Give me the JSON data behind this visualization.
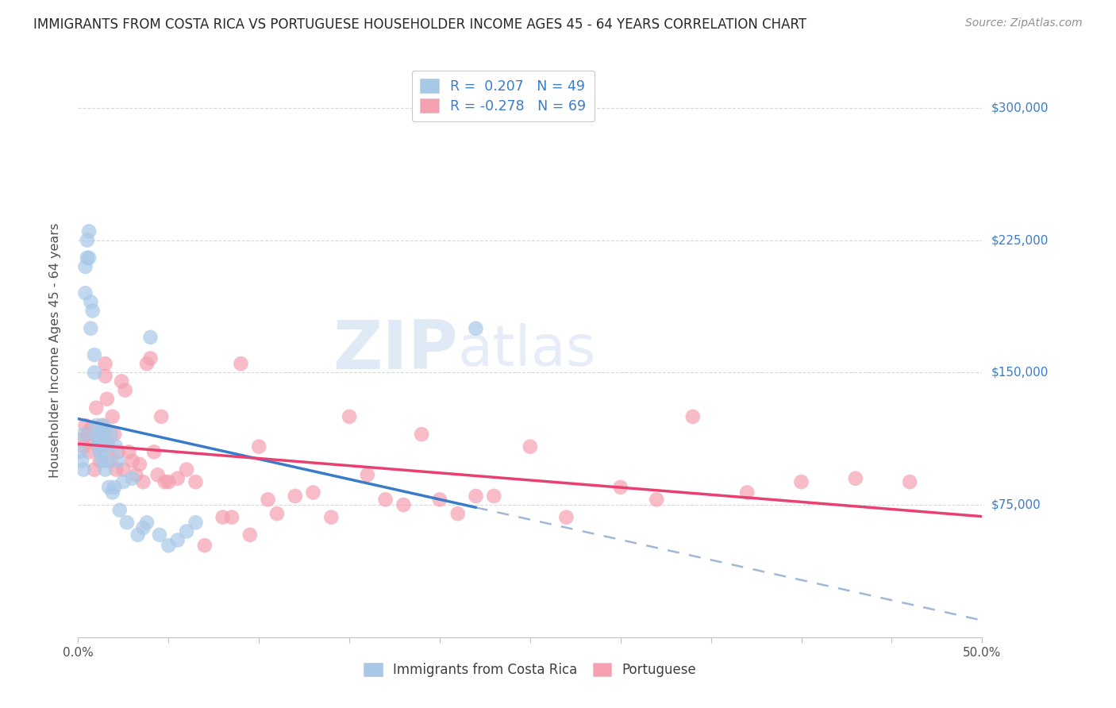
{
  "title": "IMMIGRANTS FROM COSTA RICA VS PORTUGUESE HOUSEHOLDER INCOME AGES 45 - 64 YEARS CORRELATION CHART",
  "source": "Source: ZipAtlas.com",
  "ylabel": "Householder Income Ages 45 - 64 years",
  "ytick_labels": [
    "$75,000",
    "$150,000",
    "$225,000",
    "$300,000"
  ],
  "ytick_values": [
    75000,
    150000,
    225000,
    300000
  ],
  "ylim": [
    0,
    325000
  ],
  "xlim": [
    0.0,
    0.5
  ],
  "legend_label1": "Immigrants from Costa Rica",
  "legend_label2": "Portuguese",
  "costa_rica_color": "#a8c8e8",
  "portuguese_color": "#f4a0b0",
  "regression_color_cr": "#3a7cc8",
  "regression_color_pt": "#e84070",
  "dashed_line_color": "#a0b8d8",
  "background_color": "#ffffff",
  "grid_color": "#d8d8d8",
  "title_color": "#282828",
  "axis_label_color": "#505050",
  "ytick_color": "#3a7cc8",
  "watermark_color": "#c8d8f0",
  "cr_legend_text": "R =  0.207   N = 49",
  "pt_legend_text": "R = -0.278   N = 69",
  "legend_text_color": "#3a7cc8",
  "costa_rica_x": [
    0.001,
    0.002,
    0.003,
    0.003,
    0.004,
    0.004,
    0.005,
    0.005,
    0.006,
    0.006,
    0.007,
    0.007,
    0.008,
    0.009,
    0.009,
    0.01,
    0.01,
    0.011,
    0.011,
    0.012,
    0.012,
    0.013,
    0.013,
    0.014,
    0.014,
    0.015,
    0.015,
    0.016,
    0.016,
    0.017,
    0.018,
    0.019,
    0.02,
    0.021,
    0.022,
    0.023,
    0.025,
    0.027,
    0.03,
    0.033,
    0.036,
    0.038,
    0.04,
    0.045,
    0.05,
    0.055,
    0.06,
    0.065,
    0.22
  ],
  "costa_rica_y": [
    105000,
    100000,
    115000,
    95000,
    210000,
    195000,
    225000,
    215000,
    230000,
    215000,
    190000,
    175000,
    185000,
    160000,
    150000,
    120000,
    115000,
    113000,
    110000,
    108000,
    105000,
    115000,
    100000,
    120000,
    110000,
    95000,
    115000,
    108000,
    100000,
    85000,
    115000,
    82000,
    85000,
    108000,
    100000,
    72000,
    88000,
    65000,
    90000,
    58000,
    62000,
    65000,
    170000,
    58000,
    52000,
    55000,
    60000,
    65000,
    175000
  ],
  "portuguese_x": [
    0.002,
    0.003,
    0.004,
    0.005,
    0.006,
    0.007,
    0.008,
    0.009,
    0.01,
    0.011,
    0.012,
    0.013,
    0.014,
    0.015,
    0.015,
    0.016,
    0.017,
    0.018,
    0.019,
    0.02,
    0.021,
    0.022,
    0.024,
    0.025,
    0.026,
    0.028,
    0.03,
    0.032,
    0.034,
    0.036,
    0.038,
    0.04,
    0.042,
    0.044,
    0.046,
    0.048,
    0.05,
    0.055,
    0.06,
    0.065,
    0.07,
    0.08,
    0.09,
    0.1,
    0.11,
    0.13,
    0.15,
    0.17,
    0.19,
    0.21,
    0.23,
    0.25,
    0.27,
    0.3,
    0.32,
    0.34,
    0.37,
    0.4,
    0.43,
    0.46,
    0.085,
    0.095,
    0.105,
    0.12,
    0.14,
    0.16,
    0.18,
    0.2,
    0.22
  ],
  "portuguese_y": [
    112000,
    108000,
    120000,
    115000,
    105000,
    118000,
    112000,
    95000,
    130000,
    108000,
    100000,
    120000,
    118000,
    155000,
    148000,
    135000,
    108000,
    100000,
    125000,
    115000,
    95000,
    105000,
    145000,
    95000,
    140000,
    105000,
    100000,
    92000,
    98000,
    88000,
    155000,
    158000,
    105000,
    92000,
    125000,
    88000,
    88000,
    90000,
    95000,
    88000,
    52000,
    68000,
    155000,
    108000,
    70000,
    82000,
    125000,
    78000,
    115000,
    70000,
    80000,
    108000,
    68000,
    85000,
    78000,
    125000,
    82000,
    88000,
    90000,
    88000,
    68000,
    58000,
    78000,
    80000,
    68000,
    92000,
    75000,
    78000,
    80000
  ]
}
